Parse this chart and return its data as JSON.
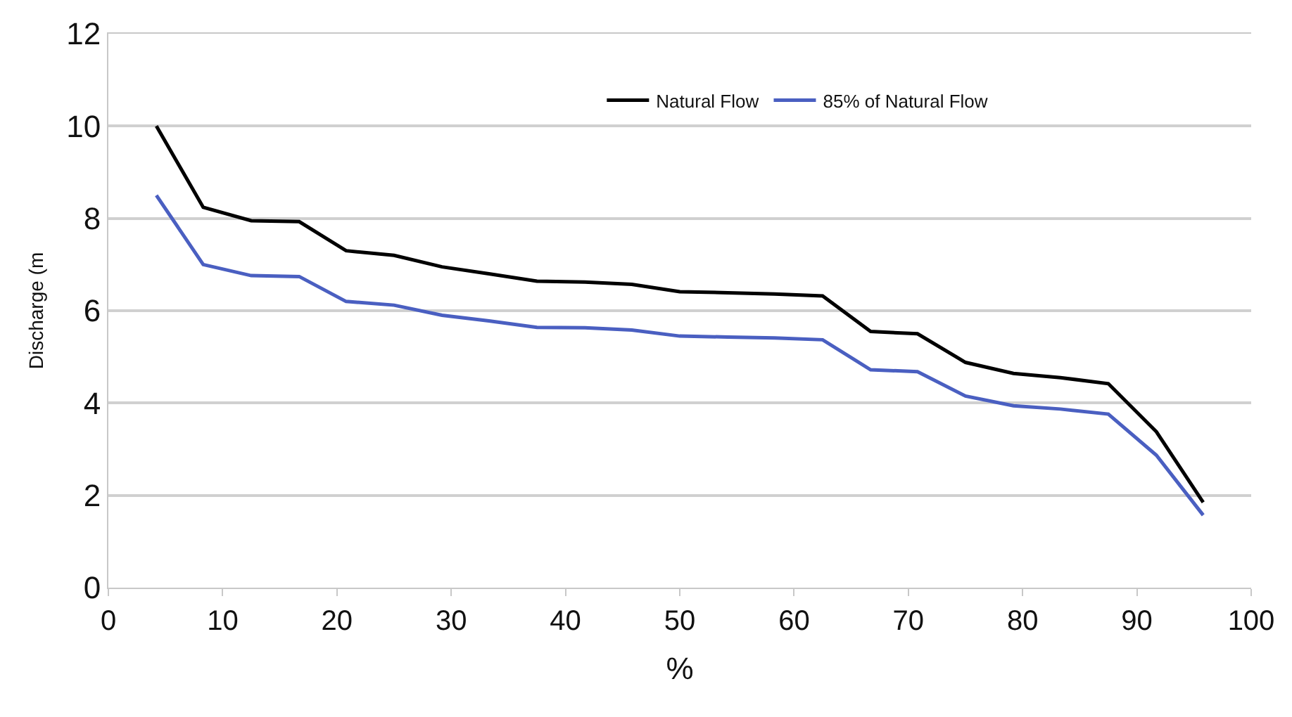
{
  "chart_data": {
    "type": "line",
    "xlabel": "%",
    "ylabel": "Discharge (m",
    "x": [
      4.2,
      8.3,
      12.5,
      16.7,
      20.8,
      25,
      29.2,
      33.3,
      37.5,
      41.7,
      45.8,
      50,
      54.2,
      58.3,
      62.5,
      66.7,
      70.8,
      75,
      79.2,
      83.3,
      87.5,
      91.7,
      95.8
    ],
    "series": [
      {
        "name": "Natural Flow",
        "color": "#000000",
        "values": [
          10.0,
          8.24,
          7.95,
          7.93,
          7.3,
          7.2,
          6.95,
          6.8,
          6.64,
          6.62,
          6.57,
          6.41,
          6.39,
          6.36,
          6.32,
          5.55,
          5.5,
          4.88,
          4.64,
          4.55,
          4.42,
          3.38,
          1.85
        ]
      },
      {
        "name": "85% of Natural Flow",
        "color": "#4a5fc1",
        "values": [
          8.5,
          7.0,
          6.76,
          6.74,
          6.2,
          6.12,
          5.9,
          5.78,
          5.64,
          5.63,
          5.58,
          5.45,
          5.43,
          5.41,
          5.37,
          4.72,
          4.68,
          4.15,
          3.94,
          3.87,
          3.76,
          2.87,
          1.57
        ]
      }
    ],
    "xlim": [
      0,
      100
    ],
    "xticks": [
      0,
      10,
      20,
      30,
      40,
      50,
      60,
      70,
      80,
      90,
      100
    ],
    "ylim": [
      0,
      12
    ],
    "yticks": [
      0,
      2,
      4,
      6,
      8,
      10,
      12
    ],
    "grid": "y",
    "legend": "top right",
    "marker": "none",
    "line_style": "solid"
  }
}
